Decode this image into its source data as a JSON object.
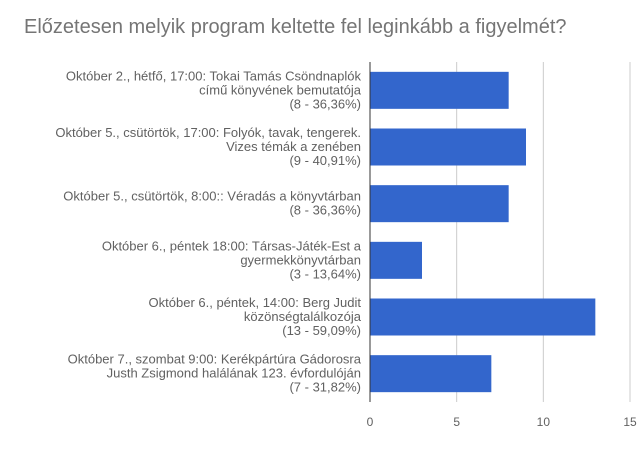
{
  "chart_data": {
    "type": "bar",
    "orientation": "horizontal",
    "title": "Előzetesen melyik program keltette fel leginkább a figyelmét?",
    "categories": [
      [
        "Október 2., hétfő, 17:00: Tokai Tamás Csöndnaplók",
        "című könyvének bemutatója",
        "(8 - 36,36%)"
      ],
      [
        "Október 5., csütörtök, 17:00: Folyók, tavak, tengerek.",
        "Vizes témák a zenében",
        "(9 - 40,91%)"
      ],
      [
        "Október 5., csütörtök, 8:00:: Véradás a könyvtárban",
        "(8 - 36,36%)"
      ],
      [
        "Október 6., péntek 18:00: Társas-Játék-Est a",
        "gyermekkönyvtárban",
        "(3 - 13,64%)"
      ],
      [
        "Október 6., péntek, 14:00: Berg Judit",
        "közönségtalálkozója",
        "(13 - 59,09%)"
      ],
      [
        "Október 7., szombat 9:00: Kerékpártúra Gádorosra",
        "Justh Zsigmond halálának 123. évfordulóján",
        "(7 - 31,82%)"
      ]
    ],
    "values": [
      8,
      9,
      8,
      3,
      13,
      7
    ],
    "xlim": [
      0,
      15
    ],
    "xticks": [
      "0",
      "5",
      "10",
      "15"
    ],
    "xlabel": "",
    "ylabel": "",
    "grid": true,
    "colors": {
      "bar": "#3366cc",
      "grid": "#cccccc",
      "axis": "#333333"
    }
  }
}
